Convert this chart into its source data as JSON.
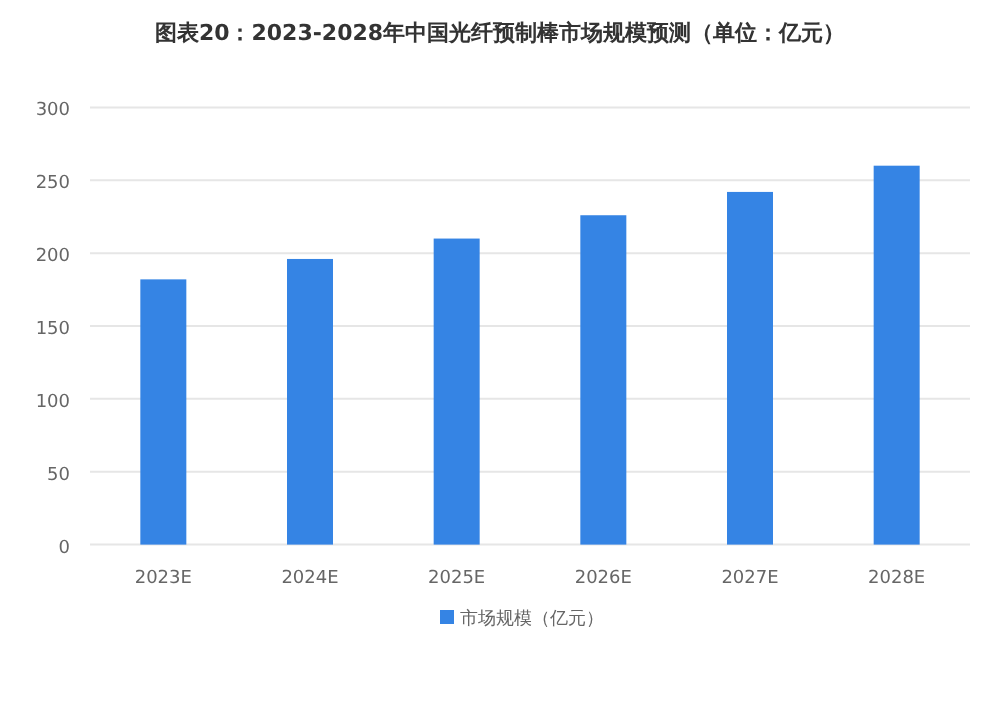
{
  "chart_data": {
    "type": "bar",
    "title": "图表20：2023-2028年中国光纤预制棒市场规模预测（单位：亿元）",
    "categories": [
      "2023E",
      "2024E",
      "2025E",
      "2026E",
      "2027E",
      "2028E"
    ],
    "series": [
      {
        "name": "市场规模（亿元）",
        "color": "#3584e4",
        "values": [
          182,
          196,
          210,
          226,
          242,
          260
        ]
      }
    ],
    "ylim": [
      0,
      300
    ],
    "yticks": [
      0,
      50,
      100,
      150,
      200,
      250,
      300
    ],
    "grid": "y",
    "legend": "bottom"
  }
}
